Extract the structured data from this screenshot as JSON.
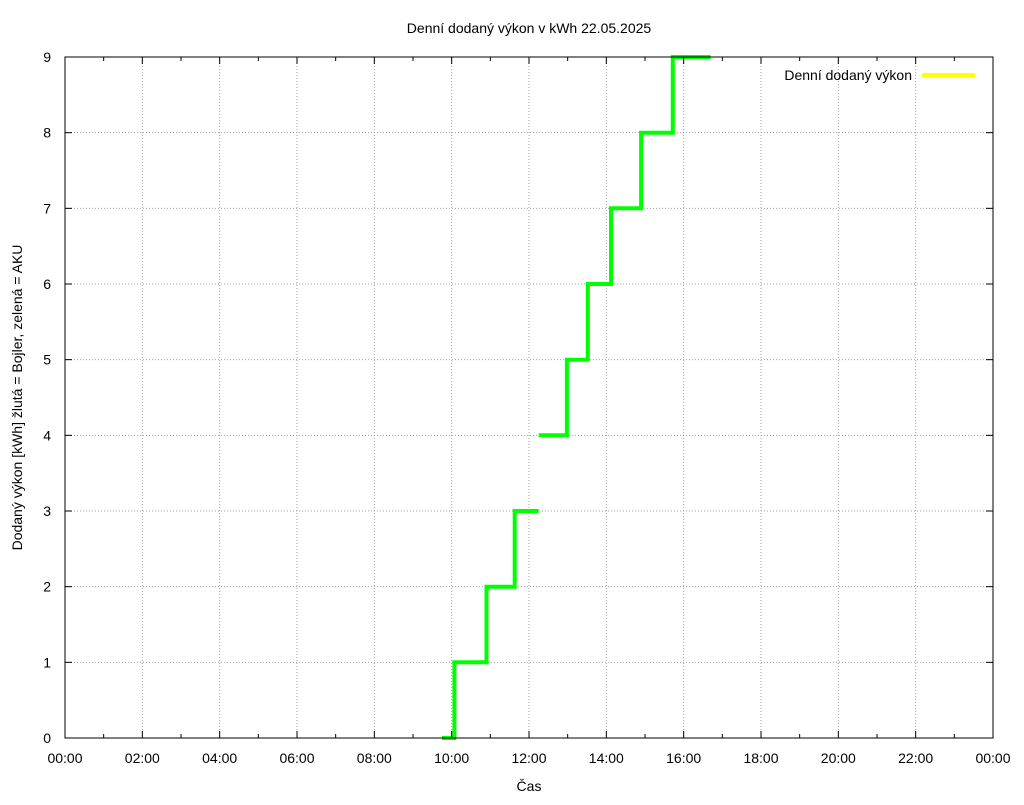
{
  "chart_data": {
    "type": "line",
    "title": "Denní dodaný výkon v kWh 22.05.2025",
    "xlabel": "Čas",
    "ylabel": "Dodaný výkon [kWh]  žlutá = Bojler, zelená = AKU",
    "x_ticks": [
      "00:00",
      "02:00",
      "04:00",
      "06:00",
      "08:00",
      "10:00",
      "12:00",
      "14:00",
      "16:00",
      "18:00",
      "20:00",
      "22:00",
      "00:00"
    ],
    "y_ticks": [
      "0",
      "1",
      "2",
      "3",
      "4",
      "5",
      "6",
      "7",
      "8",
      "9"
    ],
    "xlim": [
      0,
      24
    ],
    "ylim": [
      0,
      9
    ],
    "grid": true,
    "legend_position": "top-right",
    "series": [
      {
        "name": "Denní dodaný výkon",
        "legend_color": "#ffff00",
        "color": "#00ff00",
        "points": [
          [
            9.75,
            0
          ],
          [
            10.07,
            0
          ],
          [
            10.07,
            1
          ],
          [
            10.9,
            1
          ],
          [
            10.9,
            2
          ],
          [
            11.63,
            2
          ],
          [
            11.63,
            3
          ],
          [
            12.25,
            3
          ]
        ]
      },
      {
        "name": "",
        "color": "#00ff00",
        "points": [
          [
            12.25,
            4
          ],
          [
            12.98,
            4
          ],
          [
            12.98,
            5
          ],
          [
            13.52,
            5
          ],
          [
            13.52,
            6
          ],
          [
            14.12,
            6
          ],
          [
            14.12,
            7
          ],
          [
            14.9,
            7
          ],
          [
            14.9,
            8
          ],
          [
            15.72,
            8
          ],
          [
            15.72,
            9
          ],
          [
            16.7,
            9
          ]
        ]
      }
    ]
  }
}
